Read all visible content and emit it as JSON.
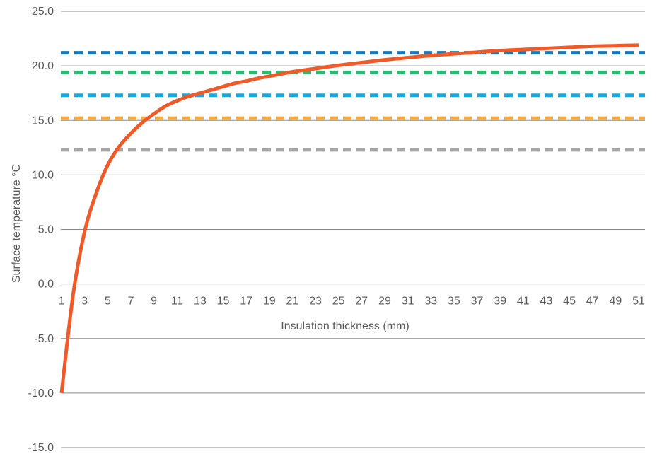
{
  "chart_data": {
    "type": "line",
    "title": "",
    "xlabel": "Insulation thickness (mm)",
    "ylabel": "Surface temperature °C",
    "xlim": [
      1,
      51
    ],
    "ylim": [
      -15,
      25
    ],
    "y_ticks": [
      "25.0",
      "20.0",
      "15.0",
      "10.0",
      "5.0",
      "0.0",
      "-5.0",
      "-10.0",
      "-15.0"
    ],
    "x_tick_labels": [
      "1",
      "3",
      "5",
      "7",
      "9",
      "11",
      "13",
      "15",
      "17",
      "19",
      "21",
      "23",
      "25",
      "27",
      "29",
      "31",
      "33",
      "35",
      "37",
      "39",
      "41",
      "43",
      "45",
      "47",
      "49",
      "51"
    ],
    "grid": true,
    "legend": "none",
    "series": [
      {
        "style": "solid",
        "color": "#f05a28",
        "x": [
          1,
          2,
          3,
          4,
          5,
          6,
          7,
          8,
          9,
          10,
          11,
          12,
          13,
          14,
          15,
          16,
          17,
          18,
          19,
          20,
          21,
          23,
          25,
          27,
          29,
          31,
          33,
          35,
          37,
          39,
          41,
          43,
          45,
          47,
          49,
          51
        ],
        "y": [
          -10.0,
          -1.0,
          4.8,
          8.3,
          10.9,
          12.6,
          13.8,
          14.8,
          15.6,
          16.3,
          16.8,
          17.2,
          17.5,
          17.8,
          18.1,
          18.4,
          18.6,
          18.85,
          19.05,
          19.25,
          19.45,
          19.75,
          20.05,
          20.3,
          20.55,
          20.75,
          20.95,
          21.1,
          21.25,
          21.4,
          21.5,
          21.6,
          21.7,
          21.8,
          21.85,
          21.9
        ]
      },
      {
        "style": "dashed",
        "color": "#1f77b4",
        "x": [
          1,
          51
        ],
        "y": [
          21.2,
          21.2
        ]
      },
      {
        "style": "dashed",
        "color": "#2eb872",
        "x": [
          1,
          51
        ],
        "y": [
          19.4,
          19.4
        ]
      },
      {
        "style": "dashed",
        "color": "#1ba8df",
        "x": [
          1,
          51
        ],
        "y": [
          17.3,
          17.3
        ]
      },
      {
        "style": "dashed",
        "color": "#f5a93b",
        "x": [
          1,
          51
        ],
        "y": [
          15.2,
          15.2
        ]
      },
      {
        "style": "dashed",
        "color": "#a6a6a6",
        "x": [
          1,
          51
        ],
        "y": [
          12.3,
          12.3
        ]
      }
    ]
  }
}
